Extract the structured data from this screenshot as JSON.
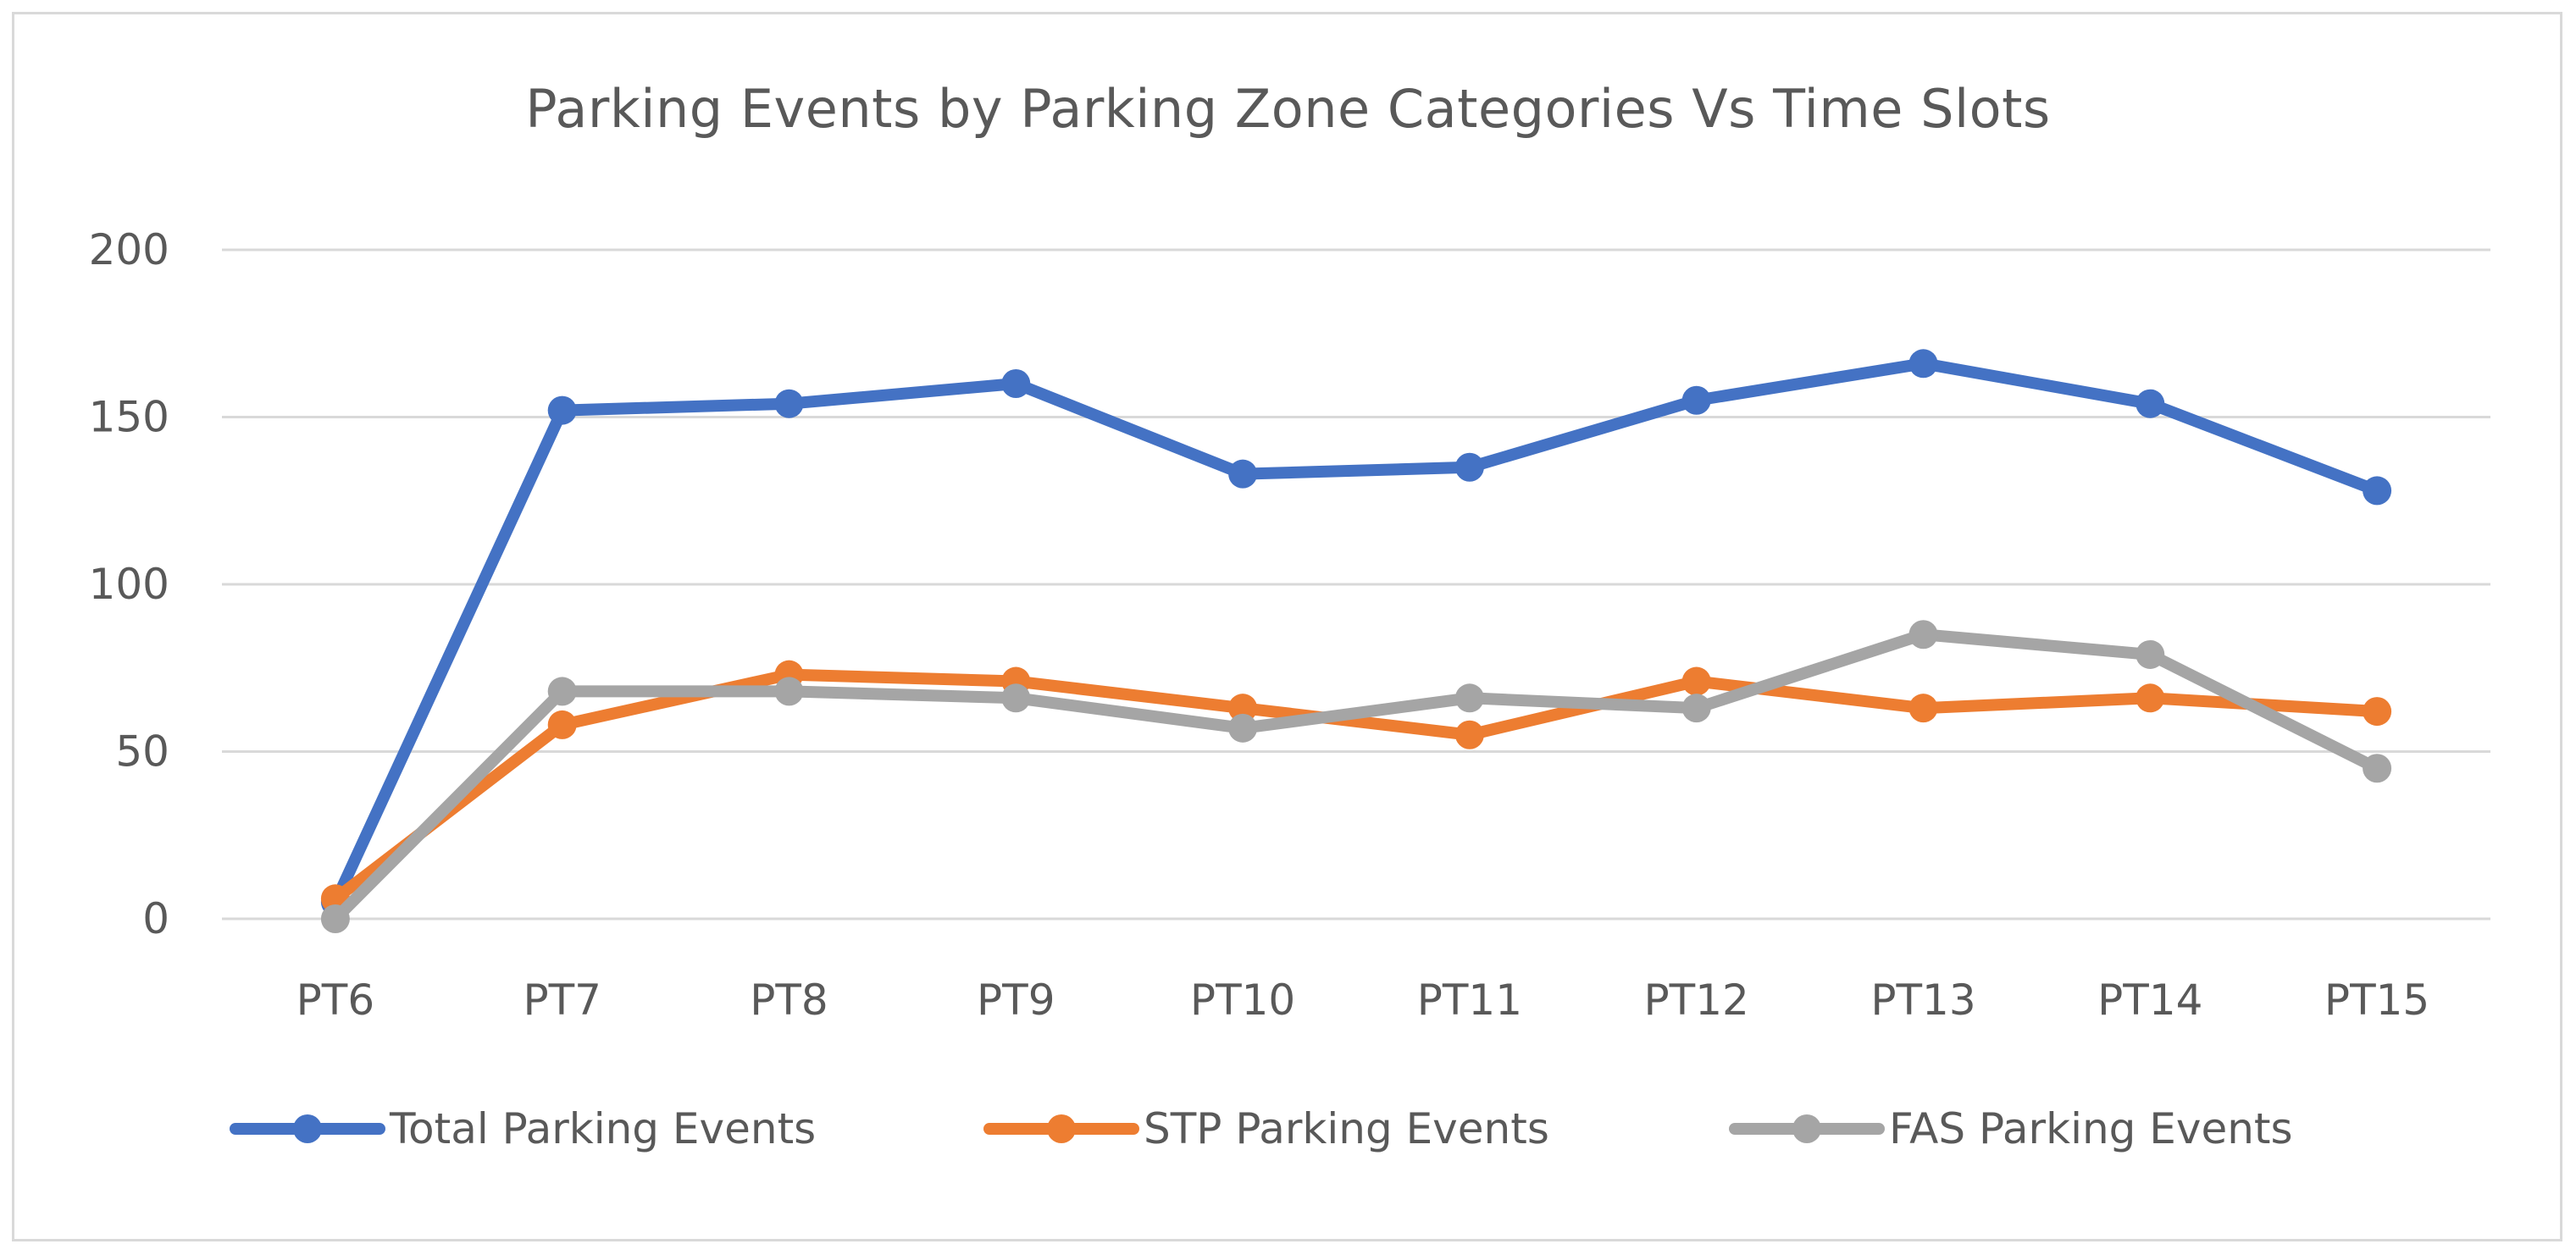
{
  "chart_data": {
    "type": "line",
    "title": "Parking Events by Parking Zone Categories Vs Time Slots",
    "categories": [
      "PT6",
      "PT7",
      "PT8",
      "PT9",
      "PT10",
      "PT11",
      "PT12",
      "PT13",
      "PT14",
      "PT15"
    ],
    "ylim": [
      0,
      200
    ],
    "yticks": [
      0,
      50,
      100,
      150,
      200
    ],
    "grid": true,
    "legend_position": "bottom",
    "series": [
      {
        "name": "Total Parking Events",
        "color": "#4472c4",
        "values": [
          5,
          152,
          154,
          160,
          133,
          135,
          155,
          166,
          154,
          128
        ]
      },
      {
        "name": "STP Parking Events",
        "color": "#ed7d31",
        "values": [
          6,
          58,
          73,
          71,
          63,
          55,
          71,
          63,
          66,
          62
        ]
      },
      {
        "name": "FAS Parking Events",
        "color": "#a5a5a5",
        "values": [
          0,
          68,
          68,
          66,
          57,
          66,
          63,
          85,
          79,
          45
        ]
      }
    ]
  }
}
